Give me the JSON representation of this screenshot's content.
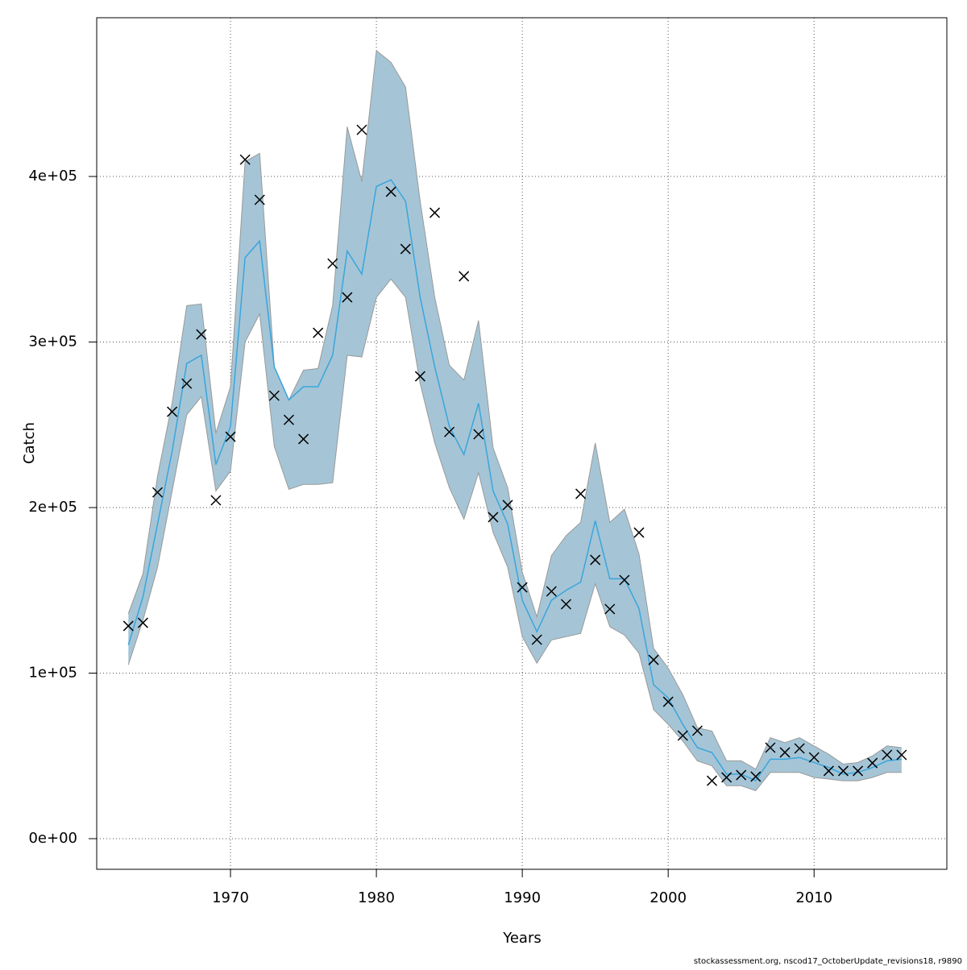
{
  "chart_data": {
    "type": "band-line",
    "x_label": "Years",
    "y_label": "Catch",
    "footer": "stockassessment.org, nscod17_OctoberUpdate_revisions18, r9890",
    "x": [
      1963,
      1964,
      1965,
      1966,
      1967,
      1968,
      1969,
      1970,
      1971,
      1972,
      1973,
      1974,
      1975,
      1976,
      1977,
      1978,
      1979,
      1980,
      1981,
      1982,
      1983,
      1984,
      1985,
      1986,
      1987,
      1988,
      1989,
      1990,
      1991,
      1992,
      1993,
      1994,
      1995,
      1996,
      1997,
      1998,
      1999,
      2000,
      2001,
      2002,
      2003,
      2004,
      2005,
      2006,
      2007,
      2008,
      2009,
      2010,
      2011,
      2012,
      2013,
      2014,
      2015,
      2016
    ],
    "estimate": [
      117000,
      146000,
      190000,
      234000,
      287000,
      292000,
      226000,
      249000,
      351000,
      361000,
      285000,
      265000,
      273000,
      273000,
      292000,
      355000,
      341000,
      394000,
      398000,
      385000,
      327000,
      285000,
      249000,
      232000,
      263000,
      210000,
      190000,
      144000,
      125000,
      144000,
      150000,
      155000,
      192000,
      157000,
      157000,
      139000,
      93000,
      85000,
      69000,
      55000,
      52000,
      39000,
      39000,
      35000,
      48000,
      48000,
      49000,
      46000,
      43000,
      39000,
      40000,
      43000,
      47000,
      48000
    ],
    "upper": [
      136000,
      160000,
      219000,
      263000,
      322000,
      323000,
      245000,
      273000,
      409000,
      414000,
      285000,
      265000,
      283000,
      284000,
      322000,
      430000,
      397000,
      476000,
      469000,
      454000,
      385000,
      327000,
      286000,
      277000,
      313000,
      236000,
      212000,
      161000,
      134000,
      171000,
      183000,
      191000,
      239000,
      191000,
      199000,
      172000,
      115000,
      103000,
      87000,
      67000,
      65000,
      47000,
      47000,
      42000,
      61000,
      58000,
      61000,
      56000,
      51000,
      45000,
      46000,
      50000,
      56000,
      55000
    ],
    "lower": [
      105000,
      132000,
      164000,
      210000,
      256000,
      267000,
      210000,
      222000,
      300000,
      317000,
      237000,
      211000,
      214000,
      214000,
      215000,
      292000,
      291000,
      327000,
      338000,
      327000,
      275000,
      239000,
      212000,
      193000,
      221000,
      185000,
      164000,
      122000,
      106000,
      120000,
      122000,
      124000,
      154000,
      128000,
      123000,
      112000,
      78000,
      69000,
      59000,
      47000,
      44000,
      32000,
      32000,
      29000,
      40000,
      40000,
      40000,
      37000,
      36000,
      35000,
      35000,
      37000,
      40000,
      40000
    ],
    "observed": [
      128500,
      130400,
      209200,
      257900,
      274900,
      304600,
      204400,
      242800,
      410200,
      385900,
      267600,
      253000,
      241400,
      305600,
      347400,
      327000,
      428200,
      null,
      390800,
      356200,
      279300,
      378100,
      245700,
      339700,
      244300,
      194200,
      201500,
      151800,
      120200,
      149400,
      141600,
      208300,
      168400,
      138700,
      156200,
      184900,
      108000,
      82700,
      62300,
      65200,
      35000,
      37000,
      38400,
      37500,
      55000,
      52100,
      54500,
      49100,
      40900,
      40900,
      40900,
      45700,
      50600,
      50600
    ],
    "band_color": "#a5c5d6",
    "line_color": "#3aa5dc",
    "marker_color": "#000000",
    "xlim": [
      1960.83,
      2019.1
    ],
    "ylim": [
      -18500,
      495900
    ],
    "xticks": [
      1970,
      1980,
      1990,
      2000,
      2010
    ],
    "yticks": [
      {
        "value": 0,
        "label": "0e+00"
      },
      {
        "value": 100000,
        "label": "1e+05"
      },
      {
        "value": 200000,
        "label": "2e+05"
      },
      {
        "value": 300000,
        "label": "3e+05"
      },
      {
        "value": 400000,
        "label": "4e+05"
      }
    ],
    "grid": true
  }
}
